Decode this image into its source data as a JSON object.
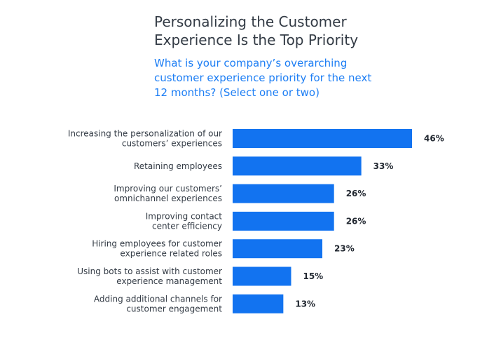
{
  "chart_data": {
    "type": "bar",
    "orientation": "horizontal",
    "title": [
      "Personalizing the Customer",
      "Experience Is the Top Priority"
    ],
    "subtitle": [
      "What is your company’s overarching",
      "customer experience priority for the next",
      "12 months? (Select one or two)"
    ],
    "categories": [
      [
        "Increasing the personalization of our",
        "customers’ experiences"
      ],
      [
        "Retaining employees"
      ],
      [
        "Improving our customers’",
        "omnichannel experiences"
      ],
      [
        "Improving contact",
        "center efficiency"
      ],
      [
        "Hiring employees for customer",
        "experience related roles"
      ],
      [
        "Using bots to assist with customer",
        "experience management"
      ],
      [
        "Adding additional channels for",
        "customer engagement"
      ]
    ],
    "values": [
      46,
      33,
      26,
      26,
      23,
      15,
      13
    ],
    "value_labels": [
      "46%",
      "33%",
      "26%",
      "26%",
      "23%",
      "15%",
      "13%"
    ],
    "unit": "%",
    "bar_color": "#1273f0",
    "grid": false,
    "legend": "none"
  }
}
